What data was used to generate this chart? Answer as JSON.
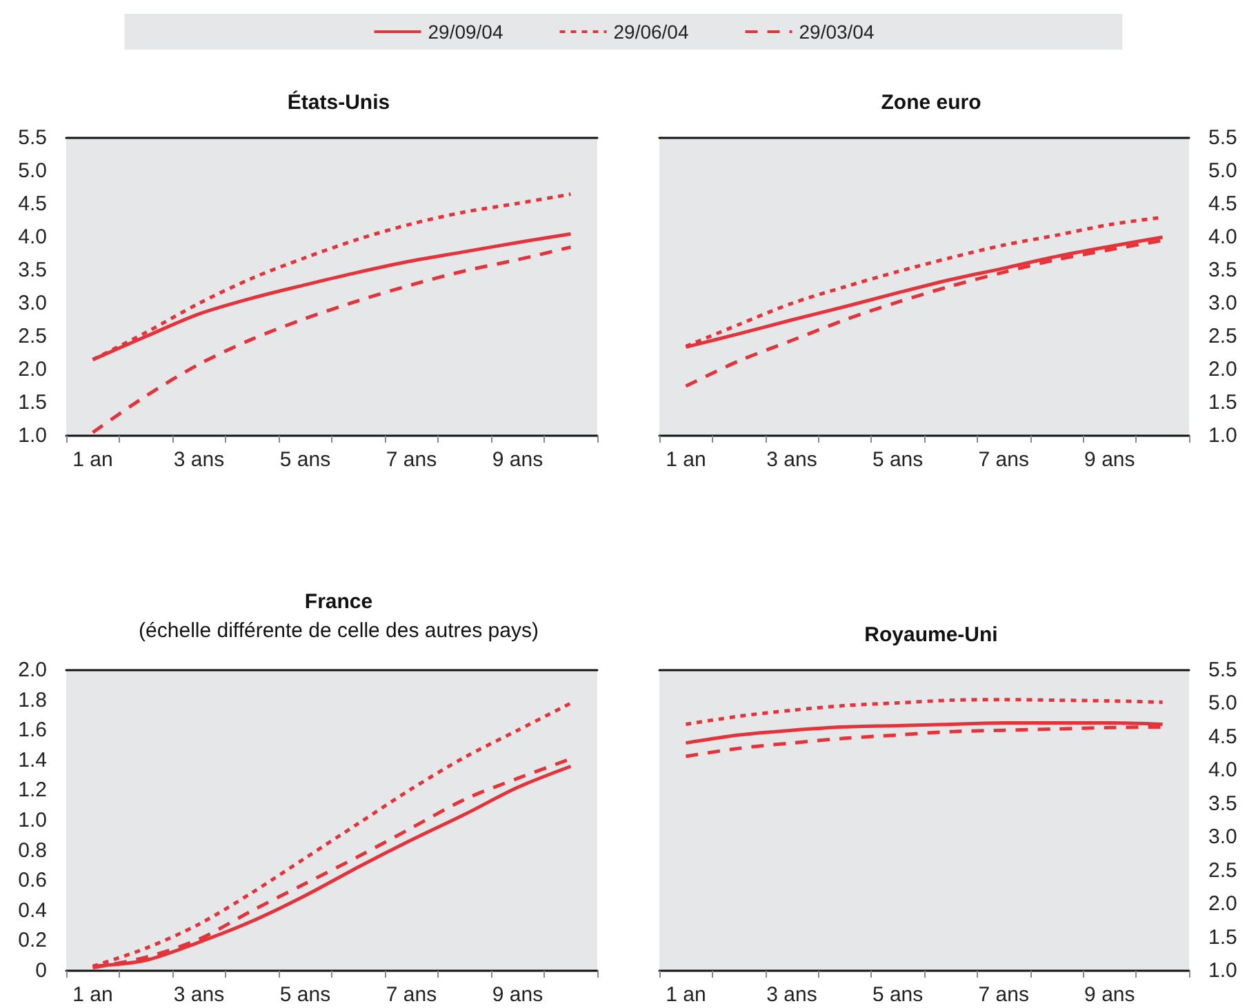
{
  "chart_data": [
    {
      "type": "line",
      "title": "États-Unis",
      "categories": [
        "1 an",
        null,
        "3 ans",
        null,
        "5 ans",
        null,
        "7 ans",
        null,
        "9 ans",
        null
      ],
      "legend": "top",
      "ylim": [
        1,
        5.5
      ],
      "yticks": [
        {
          "value": 1,
          "label": "1.0"
        },
        1.5,
        {
          "value": 2,
          "label": "2.0"
        },
        2.5,
        {
          "value": 3,
          "label": "3.0"
        },
        3.5,
        {
          "value": 4,
          "label": "4.0"
        },
        4.5,
        {
          "value": 5,
          "label": "5.0"
        },
        5.5
      ],
      "grid": false,
      "series": [
        {
          "name": "29/09/04",
          "color": "#e5333b",
          "line_style": "solid",
          "values": [
            2.15,
            2.5,
            2.84,
            3.08,
            3.28,
            3.47,
            3.64,
            3.78,
            3.92,
            4.05
          ]
        },
        {
          "name": "29/06/04",
          "color": "#e5333b",
          "line_style": "dotted",
          "values": [
            2.15,
            2.56,
            3.0,
            3.38,
            3.69,
            3.97,
            4.2,
            4.38,
            4.51,
            4.65
          ]
        },
        {
          "name": "29/03/04",
          "color": "#e5333b",
          "line_style": "dashed",
          "values": [
            1.05,
            1.6,
            2.08,
            2.46,
            2.77,
            3.04,
            3.28,
            3.49,
            3.66,
            3.85
          ]
        }
      ]
    },
    {
      "type": "line",
      "title": "Zone euro",
      "categories": [
        "1 an",
        null,
        "3 ans",
        null,
        "5 ans",
        null,
        "7 ans",
        null,
        "9 ans",
        null
      ],
      "legend": false,
      "ylim": [
        1,
        5.5
      ],
      "yticks": [
        {
          "value": 1,
          "label": "1.0"
        },
        1.5,
        {
          "value": 2,
          "label": "2.0"
        },
        2.5,
        {
          "value": 3,
          "label": "3.0"
        },
        3.5,
        {
          "value": 4,
          "label": "4.0"
        },
        4.5,
        {
          "value": 5,
          "label": "5.0"
        },
        5.5
      ],
      "grid": false,
      "series": [
        {
          "color": "#e5333b",
          "line_style": "solid",
          "values": [
            2.34,
            2.54,
            2.75,
            2.95,
            3.16,
            3.36,
            3.53,
            3.71,
            3.86,
            4.0
          ]
        },
        {
          "color": "#e5333b",
          "line_style": "dotted",
          "values": [
            2.35,
            2.68,
            3.0,
            3.25,
            3.48,
            3.69,
            3.88,
            4.03,
            4.19,
            4.3
          ]
        },
        {
          "color": "#e5333b",
          "line_style": "dashed",
          "values": [
            1.75,
            2.13,
            2.44,
            2.75,
            3.02,
            3.26,
            3.47,
            3.66,
            3.81,
            3.95
          ]
        }
      ]
    },
    {
      "type": "line",
      "title": "France",
      "subtitle": "(échelle différente de celle des autres pays)",
      "categories": [
        "1 an",
        null,
        "3 ans",
        null,
        "5 ans",
        null,
        "7 ans",
        null,
        "9 ans",
        null
      ],
      "legend": false,
      "ylim": [
        0,
        2
      ],
      "yticks": [
        0,
        0.2,
        0.4,
        0.6,
        0.8,
        {
          "value": 1,
          "label": "1.0"
        },
        1.2,
        1.4,
        1.6,
        1.8,
        {
          "value": 2,
          "label": "2.0"
        }
      ],
      "grid": false,
      "series": [
        {
          "color": "#e5333b",
          "line_style": "solid",
          "values": [
            0.03,
            0.07,
            0.19,
            0.33,
            0.5,
            0.69,
            0.87,
            1.04,
            1.22,
            1.36
          ]
        },
        {
          "color": "#e5333b",
          "line_style": "dotted",
          "values": [
            0.03,
            0.15,
            0.31,
            0.52,
            0.75,
            0.98,
            1.21,
            1.42,
            1.6,
            1.78
          ]
        },
        {
          "color": "#e5333b",
          "line_style": "dashed",
          "values": [
            0.02,
            0.09,
            0.21,
            0.4,
            0.58,
            0.76,
            0.95,
            1.14,
            1.28,
            1.41
          ]
        }
      ]
    },
    {
      "type": "line",
      "title": "Royaume-Uni",
      "categories": [
        "1 an",
        null,
        "3 ans",
        null,
        "5 ans",
        null,
        "7 ans",
        null,
        "9 ans",
        null
      ],
      "legend": false,
      "ylim": [
        1,
        5.5
      ],
      "yticks": [
        {
          "value": 1,
          "label": "1.0"
        },
        1.5,
        {
          "value": 2,
          "label": "2.0"
        },
        2.5,
        {
          "value": 3,
          "label": "3.0"
        },
        3.5,
        {
          "value": 4,
          "label": "4.0"
        },
        4.5,
        {
          "value": 5,
          "label": "5.0"
        },
        5.5
      ],
      "grid": false,
      "series": [
        {
          "color": "#e5333b",
          "line_style": "solid",
          "values": [
            4.41,
            4.53,
            4.6,
            4.65,
            4.67,
            4.69,
            4.71,
            4.71,
            4.71,
            4.69
          ]
        },
        {
          "color": "#e5333b",
          "line_style": "dotted",
          "values": [
            4.69,
            4.81,
            4.9,
            4.97,
            5.01,
            5.05,
            5.06,
            5.05,
            5.04,
            5.02
          ]
        },
        {
          "color": "#e5333b",
          "line_style": "dashed",
          "values": [
            4.21,
            4.33,
            4.41,
            4.48,
            4.53,
            4.58,
            4.6,
            4.62,
            4.64,
            4.65
          ]
        }
      ]
    }
  ]
}
